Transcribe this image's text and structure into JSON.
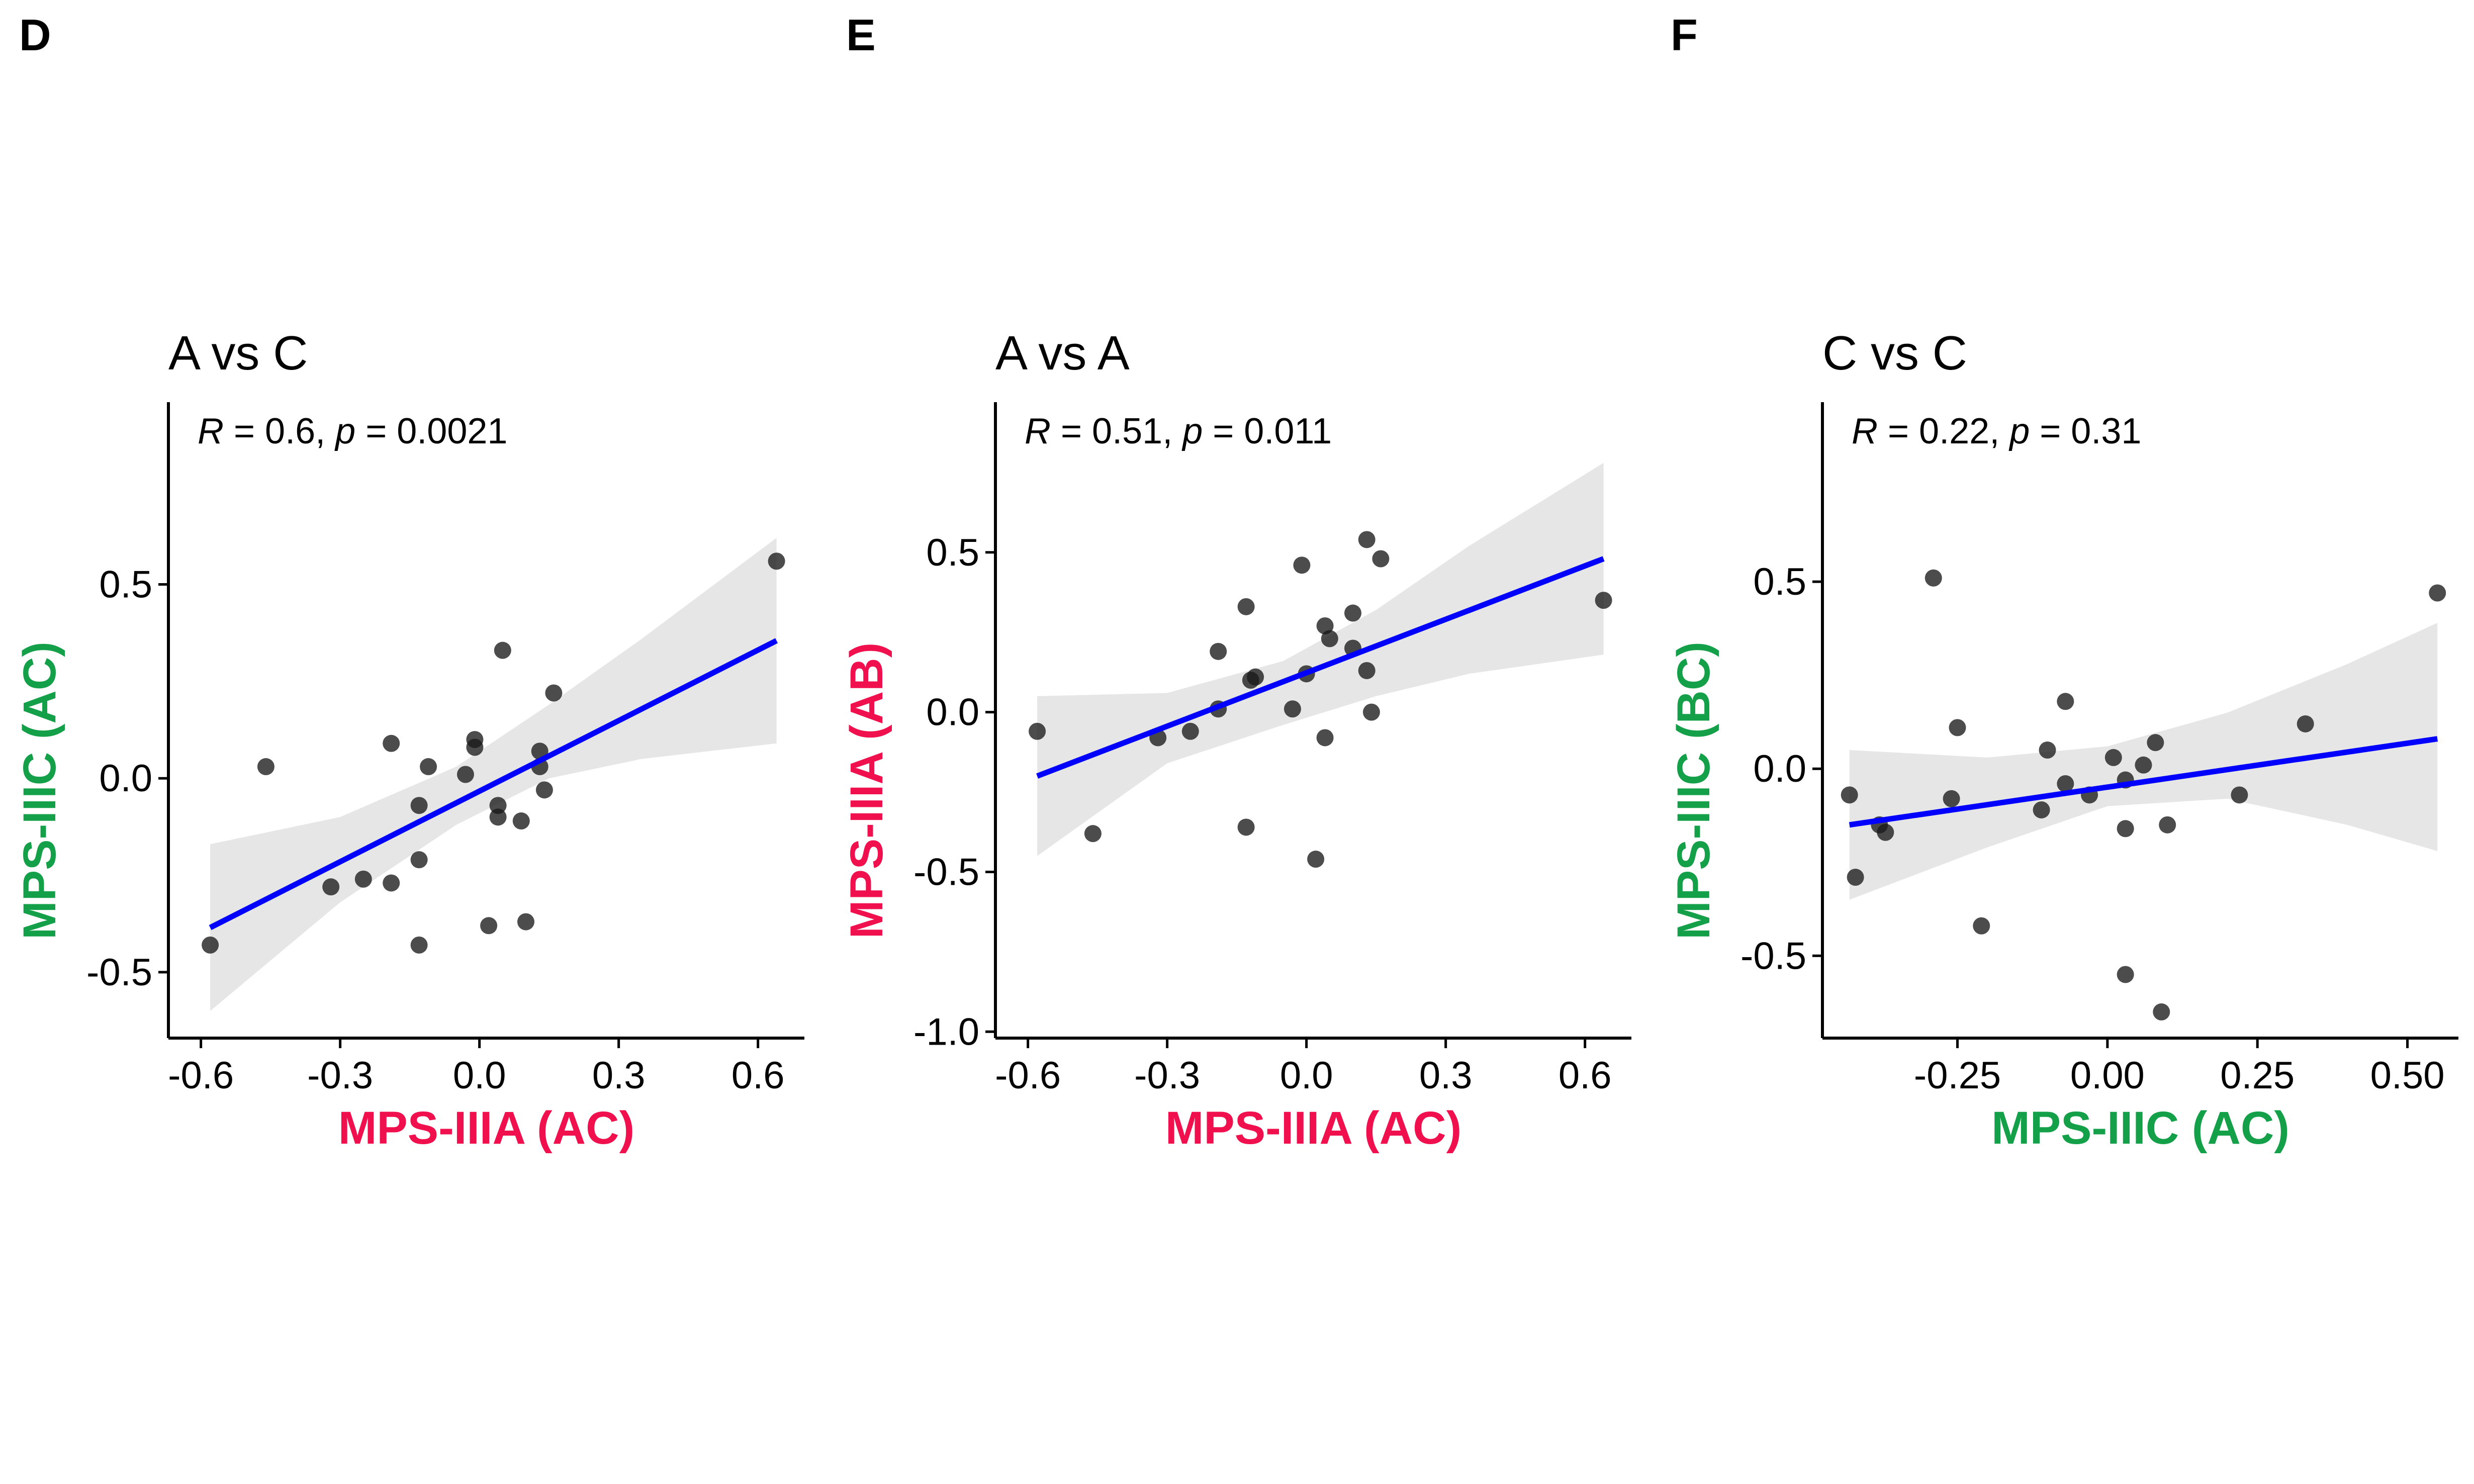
{
  "colors": {
    "mps_iiia": "#F0104E",
    "mps_iiic": "#14A048",
    "fit_line": "#0000FF",
    "ci_band": "#E6E6E6",
    "point": "#1a1a1a"
  },
  "chart_data": [
    {
      "type": "scatter",
      "panel": "D",
      "title": "A vs C",
      "stat": {
        "r_label": "R",
        "r_value": " = 0.6, ",
        "p_label": "p",
        "p_value": " = 0.0021"
      },
      "xlabel": "MPS-IIIA (AC)",
      "ylabel": "MPS-IIIC (AC)",
      "xlabel_color": "#F0104E",
      "ylabel_color": "#14A048",
      "xlim": [
        -0.67,
        0.7
      ],
      "ylim": [
        -0.67,
        0.97
      ],
      "xticks": [
        -0.6,
        -0.3,
        0.0,
        0.3,
        0.6
      ],
      "xtick_labels": [
        "-0.6",
        "-0.3",
        "0.0",
        "0.3",
        "0.6"
      ],
      "yticks": [
        -0.5,
        0.0,
        0.5
      ],
      "ytick_labels": [
        "-0.5",
        "0.0",
        "0.5"
      ],
      "points": [
        {
          "x": -0.58,
          "y": -0.43
        },
        {
          "x": -0.46,
          "y": 0.03
        },
        {
          "x": -0.32,
          "y": -0.28
        },
        {
          "x": -0.25,
          "y": -0.26
        },
        {
          "x": -0.19,
          "y": -0.27
        },
        {
          "x": -0.19,
          "y": 0.09
        },
        {
          "x": -0.13,
          "y": -0.07
        },
        {
          "x": -0.13,
          "y": -0.21
        },
        {
          "x": -0.13,
          "y": -0.43
        },
        {
          "x": -0.11,
          "y": 0.03
        },
        {
          "x": -0.03,
          "y": 0.01
        },
        {
          "x": -0.01,
          "y": 0.08
        },
        {
          "x": -0.01,
          "y": 0.1
        },
        {
          "x": 0.02,
          "y": -0.38
        },
        {
          "x": 0.04,
          "y": -0.1
        },
        {
          "x": 0.04,
          "y": -0.07
        },
        {
          "x": 0.05,
          "y": 0.33
        },
        {
          "x": 0.09,
          "y": -0.11
        },
        {
          "x": 0.1,
          "y": -0.37
        },
        {
          "x": 0.13,
          "y": 0.07
        },
        {
          "x": 0.13,
          "y": 0.03
        },
        {
          "x": 0.14,
          "y": -0.03
        },
        {
          "x": 0.16,
          "y": 0.22
        },
        {
          "x": 0.64,
          "y": 0.56
        }
      ],
      "fit": {
        "x": [
          -0.58,
          0.64
        ],
        "y": [
          -0.385,
          0.355
        ]
      },
      "ci": {
        "x": [
          -0.58,
          -0.3,
          -0.05,
          0.15,
          0.35,
          0.64
        ],
        "lower": [
          -0.6,
          -0.32,
          -0.12,
          0.0,
          0.05,
          0.09
        ],
        "upper": [
          -0.17,
          -0.1,
          0.03,
          0.19,
          0.36,
          0.62
        ]
      }
    },
    {
      "type": "scatter",
      "panel": "E",
      "title": "A vs A",
      "stat": {
        "r_label": "R",
        "r_value": " = 0.51, ",
        "p_label": "p",
        "p_value": " = 0.011"
      },
      "xlabel": "MPS-IIIA (AC)",
      "ylabel": "MPS-IIIA (AB)",
      "xlabel_color": "#F0104E",
      "ylabel_color": "#F0104E",
      "xlim": [
        -0.67,
        0.7
      ],
      "ylim": [
        -1.02,
        0.97
      ],
      "xticks": [
        -0.6,
        -0.3,
        0.0,
        0.3,
        0.6
      ],
      "xtick_labels": [
        "-0.6",
        "-0.3",
        "0.0",
        "0.3",
        "0.6"
      ],
      "yticks": [
        -1.0,
        -0.5,
        0.0,
        0.5
      ],
      "ytick_labels": [
        "-1.0",
        "-0.5",
        "0.0",
        "0.5"
      ],
      "points": [
        {
          "x": -0.58,
          "y": -0.06
        },
        {
          "x": -0.46,
          "y": -0.38
        },
        {
          "x": -0.32,
          "y": -0.08
        },
        {
          "x": -0.25,
          "y": -0.06
        },
        {
          "x": -0.19,
          "y": 0.19
        },
        {
          "x": -0.19,
          "y": 0.01
        },
        {
          "x": -0.13,
          "y": 0.33
        },
        {
          "x": -0.13,
          "y": -0.36
        },
        {
          "x": -0.12,
          "y": 0.1
        },
        {
          "x": -0.11,
          "y": 0.11
        },
        {
          "x": -0.03,
          "y": 0.01
        },
        {
          "x": -0.01,
          "y": 0.46
        },
        {
          "x": 0.0,
          "y": 0.12
        },
        {
          "x": 0.02,
          "y": -0.46
        },
        {
          "x": 0.04,
          "y": 0.27
        },
        {
          "x": 0.04,
          "y": -0.08
        },
        {
          "x": 0.05,
          "y": 0.23
        },
        {
          "x": 0.1,
          "y": 0.2
        },
        {
          "x": 0.1,
          "y": 0.31
        },
        {
          "x": 0.13,
          "y": 0.54
        },
        {
          "x": 0.13,
          "y": 0.13
        },
        {
          "x": 0.14,
          "y": 0.0
        },
        {
          "x": 0.16,
          "y": 0.48
        },
        {
          "x": 0.64,
          "y": 0.35
        }
      ],
      "fit": {
        "x": [
          -0.58,
          0.64
        ],
        "y": [
          -0.2,
          0.48
        ]
      },
      "ci": {
        "x": [
          -0.58,
          -0.3,
          -0.05,
          0.15,
          0.35,
          0.64
        ],
        "lower": [
          -0.45,
          -0.16,
          -0.04,
          0.05,
          0.12,
          0.18
        ],
        "upper": [
          0.05,
          0.06,
          0.16,
          0.32,
          0.52,
          0.78
        ]
      }
    },
    {
      "type": "scatter",
      "panel": "F",
      "title": "C vs C",
      "stat": {
        "r_label": "R",
        "r_value": " = 0.22, ",
        "p_label": "p",
        "p_value": " = 0.31"
      },
      "xlabel": "MPS-IIIC (AC)",
      "ylabel": "MPS-IIIC (BC)",
      "xlabel_color": "#14A048",
      "ylabel_color": "#14A048",
      "xlim": [
        -0.475,
        0.585
      ],
      "ylim": [
        -0.72,
        0.98
      ],
      "xticks": [
        -0.25,
        0.0,
        0.25,
        0.5
      ],
      "xtick_labels": [
        "-0.25",
        "0.00",
        "0.25",
        "0.50"
      ],
      "yticks": [
        -0.5,
        0.0,
        0.5
      ],
      "ytick_labels": [
        "-0.5",
        "0.0",
        "0.5"
      ],
      "points": [
        {
          "x": -0.43,
          "y": -0.07
        },
        {
          "x": -0.42,
          "y": -0.29
        },
        {
          "x": -0.38,
          "y": -0.15
        },
        {
          "x": -0.37,
          "y": -0.17
        },
        {
          "x": -0.29,
          "y": 0.51
        },
        {
          "x": -0.26,
          "y": -0.08
        },
        {
          "x": -0.25,
          "y": 0.11
        },
        {
          "x": -0.21,
          "y": -0.42
        },
        {
          "x": -0.11,
          "y": -0.11
        },
        {
          "x": -0.1,
          "y": 0.05
        },
        {
          "x": -0.07,
          "y": -0.04
        },
        {
          "x": -0.07,
          "y": 0.18
        },
        {
          "x": -0.03,
          "y": -0.07
        },
        {
          "x": 0.01,
          "y": 0.03
        },
        {
          "x": 0.03,
          "y": -0.03
        },
        {
          "x": 0.03,
          "y": -0.16
        },
        {
          "x": 0.03,
          "y": -0.55
        },
        {
          "x": 0.06,
          "y": 0.01
        },
        {
          "x": 0.08,
          "y": 0.07
        },
        {
          "x": 0.09,
          "y": -0.65
        },
        {
          "x": 0.1,
          "y": -0.15
        },
        {
          "x": 0.22,
          "y": -0.07
        },
        {
          "x": 0.33,
          "y": 0.12
        },
        {
          "x": 0.55,
          "y": 0.47
        }
      ],
      "fit": {
        "x": [
          -0.43,
          0.55
        ],
        "y": [
          -0.15,
          0.08
        ]
      },
      "ci": {
        "x": [
          -0.43,
          -0.2,
          0.0,
          0.2,
          0.4,
          0.55
        ],
        "lower": [
          -0.35,
          -0.21,
          -0.1,
          -0.08,
          -0.15,
          -0.22
        ],
        "upper": [
          0.05,
          0.03,
          0.06,
          0.15,
          0.28,
          0.39
        ]
      }
    }
  ]
}
